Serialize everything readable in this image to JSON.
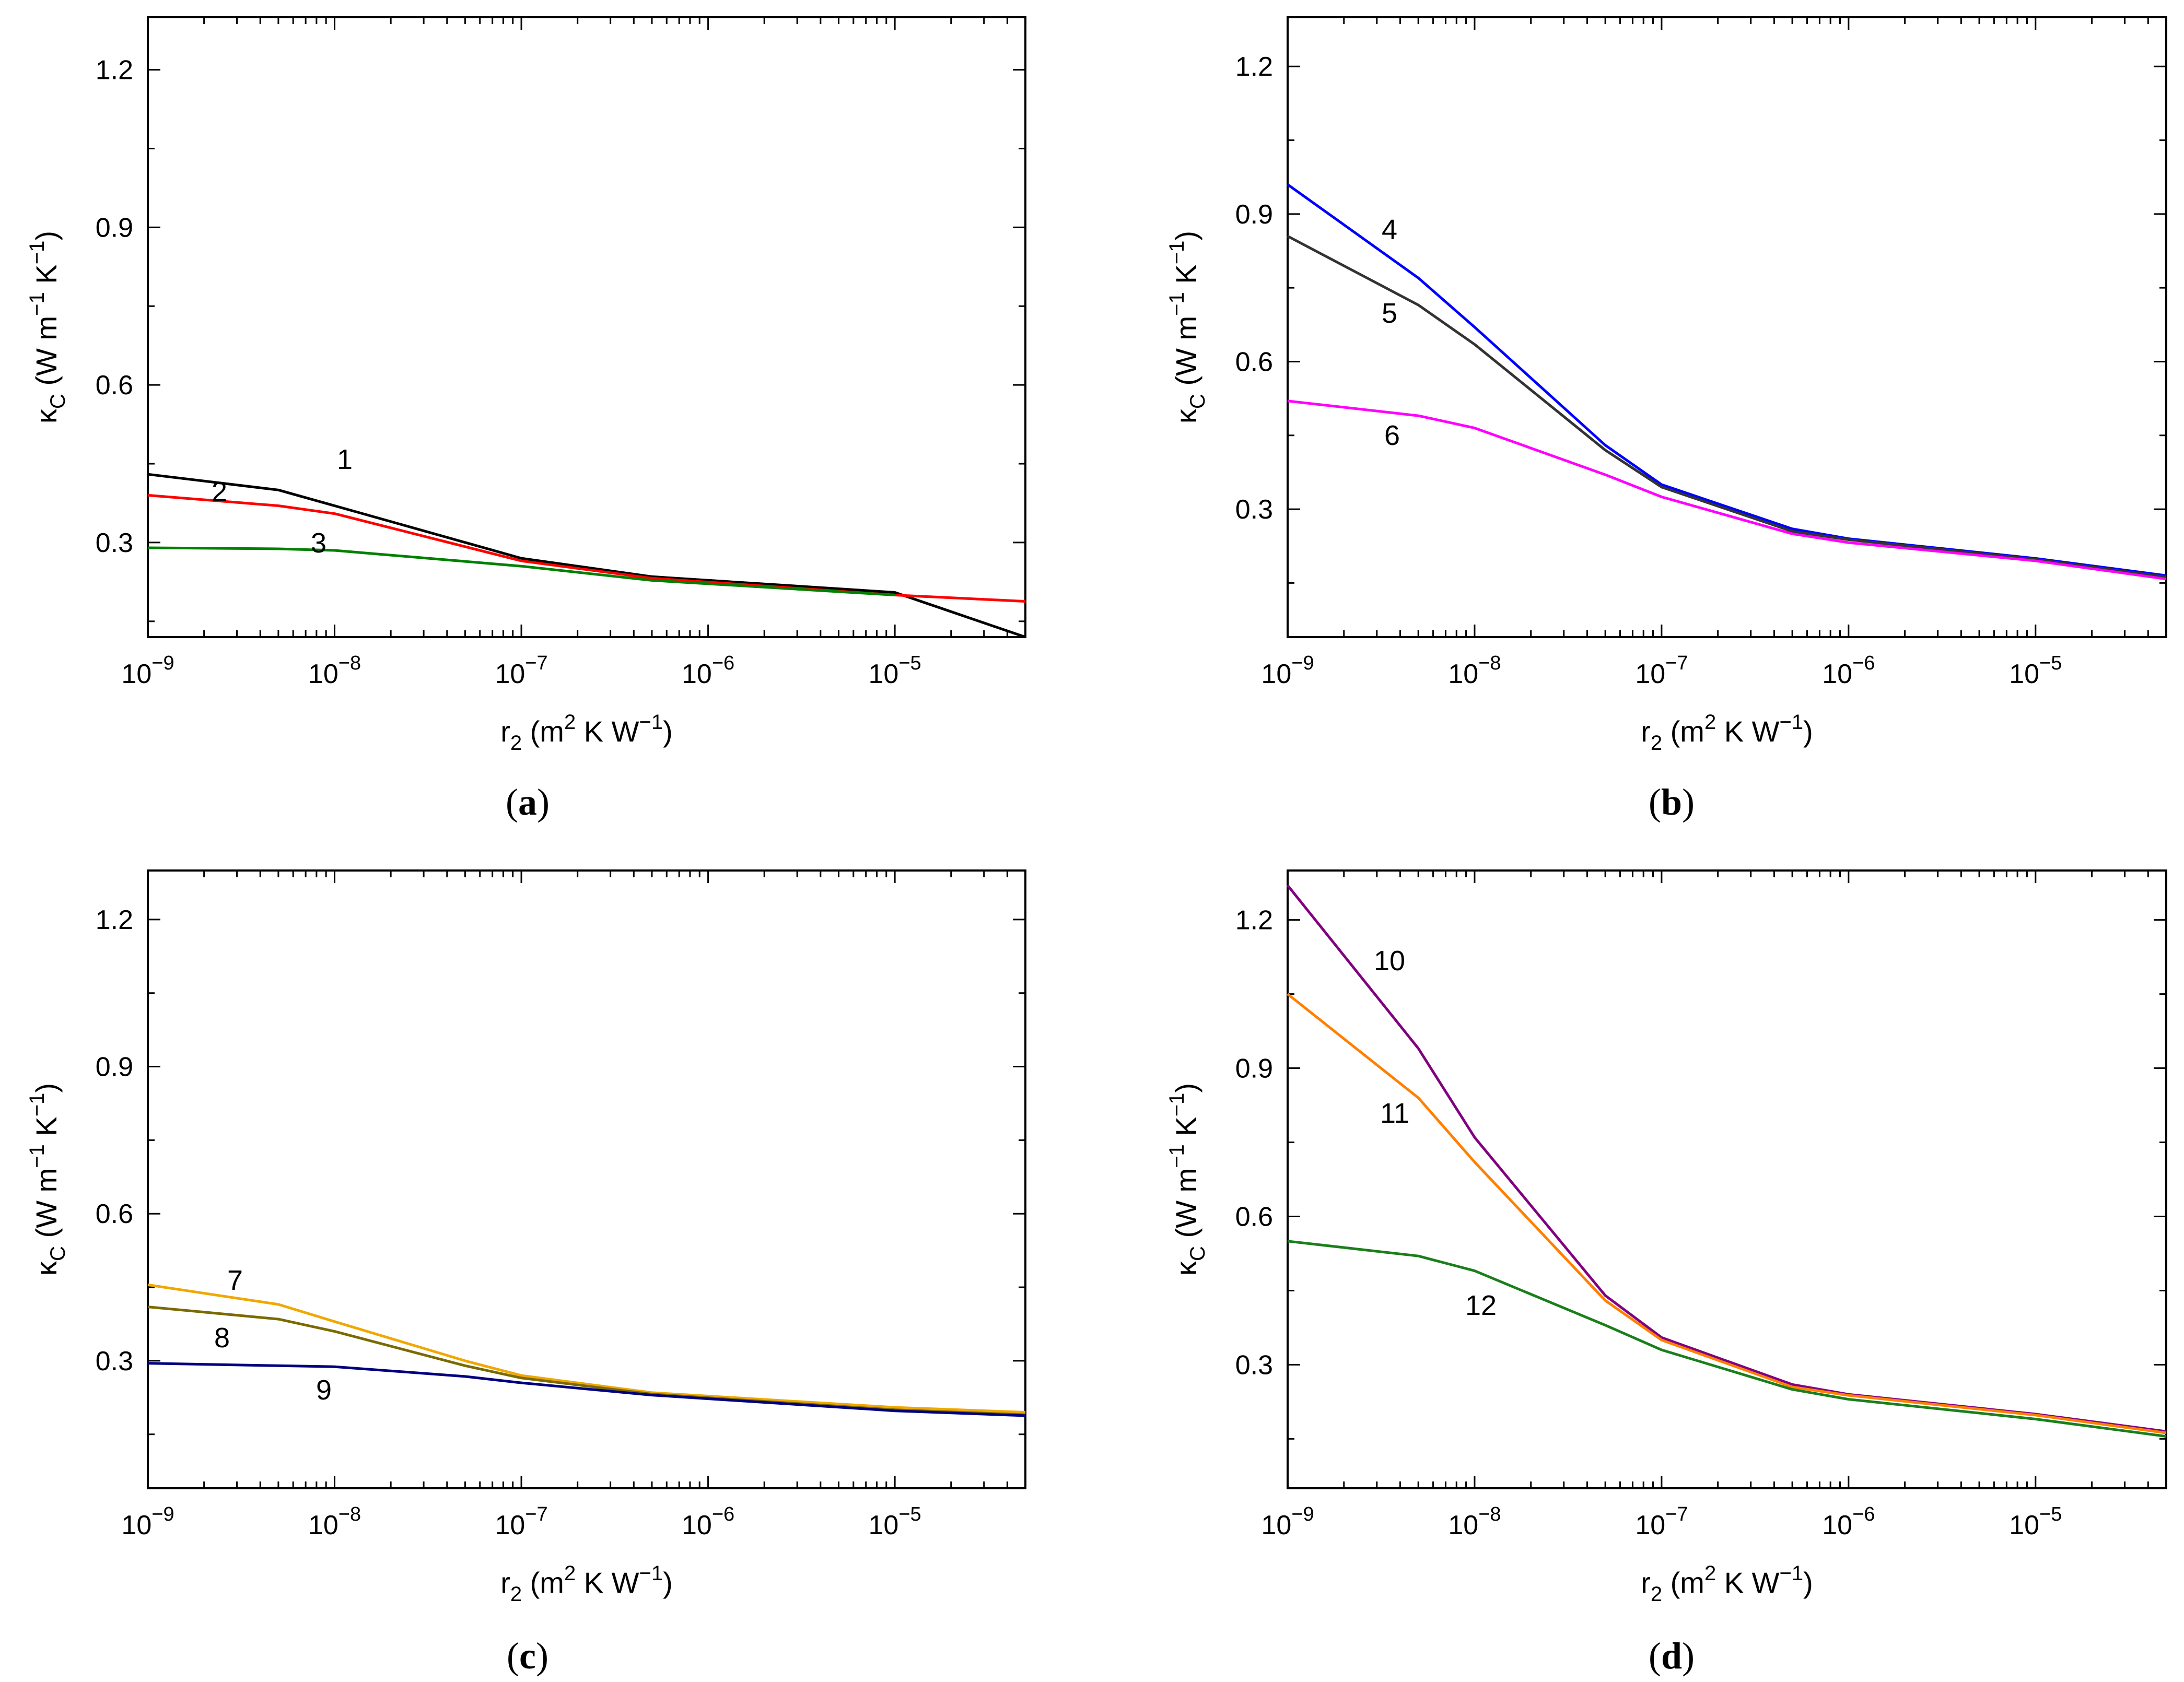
{
  "chart_data": [
    {
      "type": "line",
      "panel": "a",
      "caption": "a",
      "xscale": "log",
      "xlim": [
        1e-09,
        5e-05
      ],
      "ylim": [
        0.12,
        1.3
      ],
      "x_ticks": [
        {
          "base": "10",
          "exp": "−9",
          "value": 1e-09
        },
        {
          "base": "10",
          "exp": "−8",
          "value": 1e-08
        },
        {
          "base": "10",
          "exp": "−7",
          "value": 1e-07
        },
        {
          "base": "10",
          "exp": "−6",
          "value": 1e-06
        },
        {
          "base": "10",
          "exp": "−5",
          "value": 1e-05
        }
      ],
      "y_ticks": [
        "0.3",
        "0.6",
        "0.9",
        "1.2"
      ],
      "xlabel": {
        "main": "r",
        "sub": "2",
        "open": " (m",
        "sup": "2",
        "rest": " K  W",
        "sup2": "−1",
        "close": ")"
      },
      "ylabel": {
        "main": "κ",
        "sub": "C",
        "open": " (W m",
        "sup": "−1",
        "rest": " K",
        "sup2": "−1",
        "close": ")"
      },
      "series": [
        {
          "name": "1",
          "color": "#000000",
          "x": [
            1e-09,
            5e-09,
            1e-08,
            1e-07,
            5e-07,
            1e-05,
            5e-05
          ],
          "y": [
            0.43,
            0.4,
            0.37,
            0.27,
            0.235,
            0.205,
            0.12
          ]
        },
        {
          "name": "2",
          "color": "#ff0000",
          "x": [
            1e-09,
            5e-09,
            1e-08,
            1e-07,
            5e-07,
            1e-05,
            5e-05
          ],
          "y": [
            0.39,
            0.37,
            0.355,
            0.265,
            0.232,
            0.2,
            0.188
          ]
        },
        {
          "name": "3",
          "color": "#008000",
          "x": [
            1e-09,
            5e-09,
            1e-08,
            1e-07,
            5e-07,
            1e-05
          ],
          "y": [
            0.29,
            0.288,
            0.285,
            0.255,
            0.228,
            0.2
          ]
        }
      ]
    },
    {
      "type": "line",
      "panel": "b",
      "caption": "b",
      "xscale": "log",
      "xlim": [
        1e-09,
        5e-05
      ],
      "ylim": [
        0.04,
        1.3
      ],
      "x_ticks": [
        {
          "base": "10",
          "exp": "−9",
          "value": 1e-09
        },
        {
          "base": "10",
          "exp": "−8",
          "value": 1e-08
        },
        {
          "base": "10",
          "exp": "−7",
          "value": 1e-07
        },
        {
          "base": "10",
          "exp": "−6",
          "value": 1e-06
        },
        {
          "base": "10",
          "exp": "−5",
          "value": 1e-05
        }
      ],
      "y_ticks": [
        "0.3",
        "0.6",
        "0.9",
        "1.2"
      ],
      "xlabel": {
        "main": "r",
        "sub": "2",
        "open": " (m",
        "sup": "2",
        "rest": " K  W",
        "sup2": "−1",
        "close": ")"
      },
      "ylabel": {
        "main": "κ",
        "sub": "C",
        "open": " (W m",
        "sup": "−1",
        "rest": " K",
        "sup2": "−1",
        "close": ")"
      },
      "series": [
        {
          "name": "4",
          "color": "#0000ff",
          "x": [
            1e-09,
            5e-09,
            1e-08,
            5e-08,
            1e-07,
            5e-07,
            1e-06,
            1e-05,
            5e-05
          ],
          "y": [
            0.96,
            0.77,
            0.67,
            0.43,
            0.35,
            0.26,
            0.24,
            0.2,
            0.165
          ]
        },
        {
          "name": "5",
          "color": "#333333",
          "x": [
            1e-09,
            5e-09,
            1e-08,
            5e-08,
            1e-07,
            5e-07,
            1e-06,
            1e-05,
            5e-05
          ],
          "y": [
            0.855,
            0.715,
            0.635,
            0.42,
            0.345,
            0.255,
            0.238,
            0.198,
            0.162
          ]
        },
        {
          "name": "6",
          "color": "#ff00ff",
          "x": [
            1e-09,
            5e-09,
            1e-08,
            5e-08,
            1e-07,
            5e-07,
            1e-06,
            1e-05,
            5e-05
          ],
          "y": [
            0.52,
            0.49,
            0.465,
            0.37,
            0.325,
            0.25,
            0.232,
            0.195,
            0.158
          ]
        }
      ]
    },
    {
      "type": "line",
      "panel": "c",
      "caption": "c",
      "xscale": "log",
      "xlim": [
        1e-09,
        5e-05
      ],
      "ylim": [
        0.04,
        1.3
      ],
      "x_ticks": [
        {
          "base": "10",
          "exp": "−9",
          "value": 1e-09
        },
        {
          "base": "10",
          "exp": "−8",
          "value": 1e-08
        },
        {
          "base": "10",
          "exp": "−7",
          "value": 1e-07
        },
        {
          "base": "10",
          "exp": "−6",
          "value": 1e-06
        },
        {
          "base": "10",
          "exp": "−5",
          "value": 1e-05
        }
      ],
      "y_ticks": [
        "0.3",
        "0.6",
        "0.9",
        "1.2"
      ],
      "xlabel": {
        "main": "r",
        "sub": "2",
        "open": " (m",
        "sup": "2",
        "rest": " K  W",
        "sup2": "−1",
        "close": ")"
      },
      "ylabel": {
        "main": "κ",
        "sub": "C",
        "open": " (W m",
        "sup": "−1",
        "rest": " K",
        "sup2": "−1",
        "close": ")"
      },
      "series": [
        {
          "name": "7",
          "color": "#f0a800",
          "x": [
            1e-09,
            5e-09,
            1e-08,
            5e-08,
            1e-07,
            5e-07,
            1e-05,
            5e-05
          ],
          "y": [
            0.455,
            0.415,
            0.38,
            0.3,
            0.27,
            0.235,
            0.205,
            0.195
          ]
        },
        {
          "name": "8",
          "color": "#7a6a00",
          "x": [
            1e-09,
            5e-09,
            1e-08,
            5e-08,
            1e-07,
            5e-07,
            1e-05,
            5e-05
          ],
          "y": [
            0.41,
            0.385,
            0.36,
            0.29,
            0.265,
            0.232,
            0.2,
            0.19
          ]
        },
        {
          "name": "9",
          "color": "#000080",
          "x": [
            1e-09,
            5e-09,
            1e-08,
            5e-08,
            1e-07,
            5e-07,
            1e-05,
            5e-05
          ],
          "y": [
            0.295,
            0.29,
            0.288,
            0.268,
            0.255,
            0.23,
            0.198,
            0.188
          ]
        }
      ]
    },
    {
      "type": "line",
      "panel": "d",
      "caption": "d",
      "xscale": "log",
      "xlim": [
        1e-09,
        5e-05
      ],
      "ylim": [
        0.05,
        1.3
      ],
      "x_ticks": [
        {
          "base": "10",
          "exp": "−9",
          "value": 1e-09
        },
        {
          "base": "10",
          "exp": "−8",
          "value": 1e-08
        },
        {
          "base": "10",
          "exp": "−7",
          "value": 1e-07
        },
        {
          "base": "10",
          "exp": "−6",
          "value": 1e-06
        },
        {
          "base": "10",
          "exp": "−5",
          "value": 1e-05
        }
      ],
      "y_ticks": [
        "0.3",
        "0.6",
        "0.9",
        "1.2"
      ],
      "xlabel": {
        "main": "r",
        "sub": "2",
        "open": " (m",
        "sup": "2",
        "rest": " K  W",
        "sup2": "−1",
        "close": ")"
      },
      "ylabel": {
        "main": "κ",
        "sub": "C",
        "open": " (W m",
        "sup": "−1",
        "rest": " K",
        "sup2": "−1",
        "close": ")"
      },
      "series": [
        {
          "name": "10",
          "color": "#800080",
          "x": [
            1e-09,
            5e-09,
            1e-08,
            5e-08,
            1e-07,
            5e-07,
            1e-06,
            1e-05,
            5e-05
          ],
          "y": [
            1.27,
            0.94,
            0.76,
            0.44,
            0.355,
            0.26,
            0.24,
            0.2,
            0.165
          ]
        },
        {
          "name": "11",
          "color": "#ff7f00",
          "x": [
            1e-09,
            5e-09,
            1e-08,
            5e-08,
            1e-07,
            5e-07,
            1e-06,
            1e-05,
            5e-05
          ],
          "y": [
            1.05,
            0.84,
            0.71,
            0.43,
            0.35,
            0.255,
            0.238,
            0.198,
            0.162
          ]
        },
        {
          "name": "12",
          "color": "#1a7f1a",
          "x": [
            1e-09,
            5e-09,
            1e-08,
            5e-08,
            1e-07,
            5e-07,
            1e-06,
            1e-05,
            5e-05
          ],
          "y": [
            0.55,
            0.52,
            0.49,
            0.38,
            0.33,
            0.25,
            0.23,
            0.19,
            0.155
          ]
        }
      ]
    }
  ]
}
